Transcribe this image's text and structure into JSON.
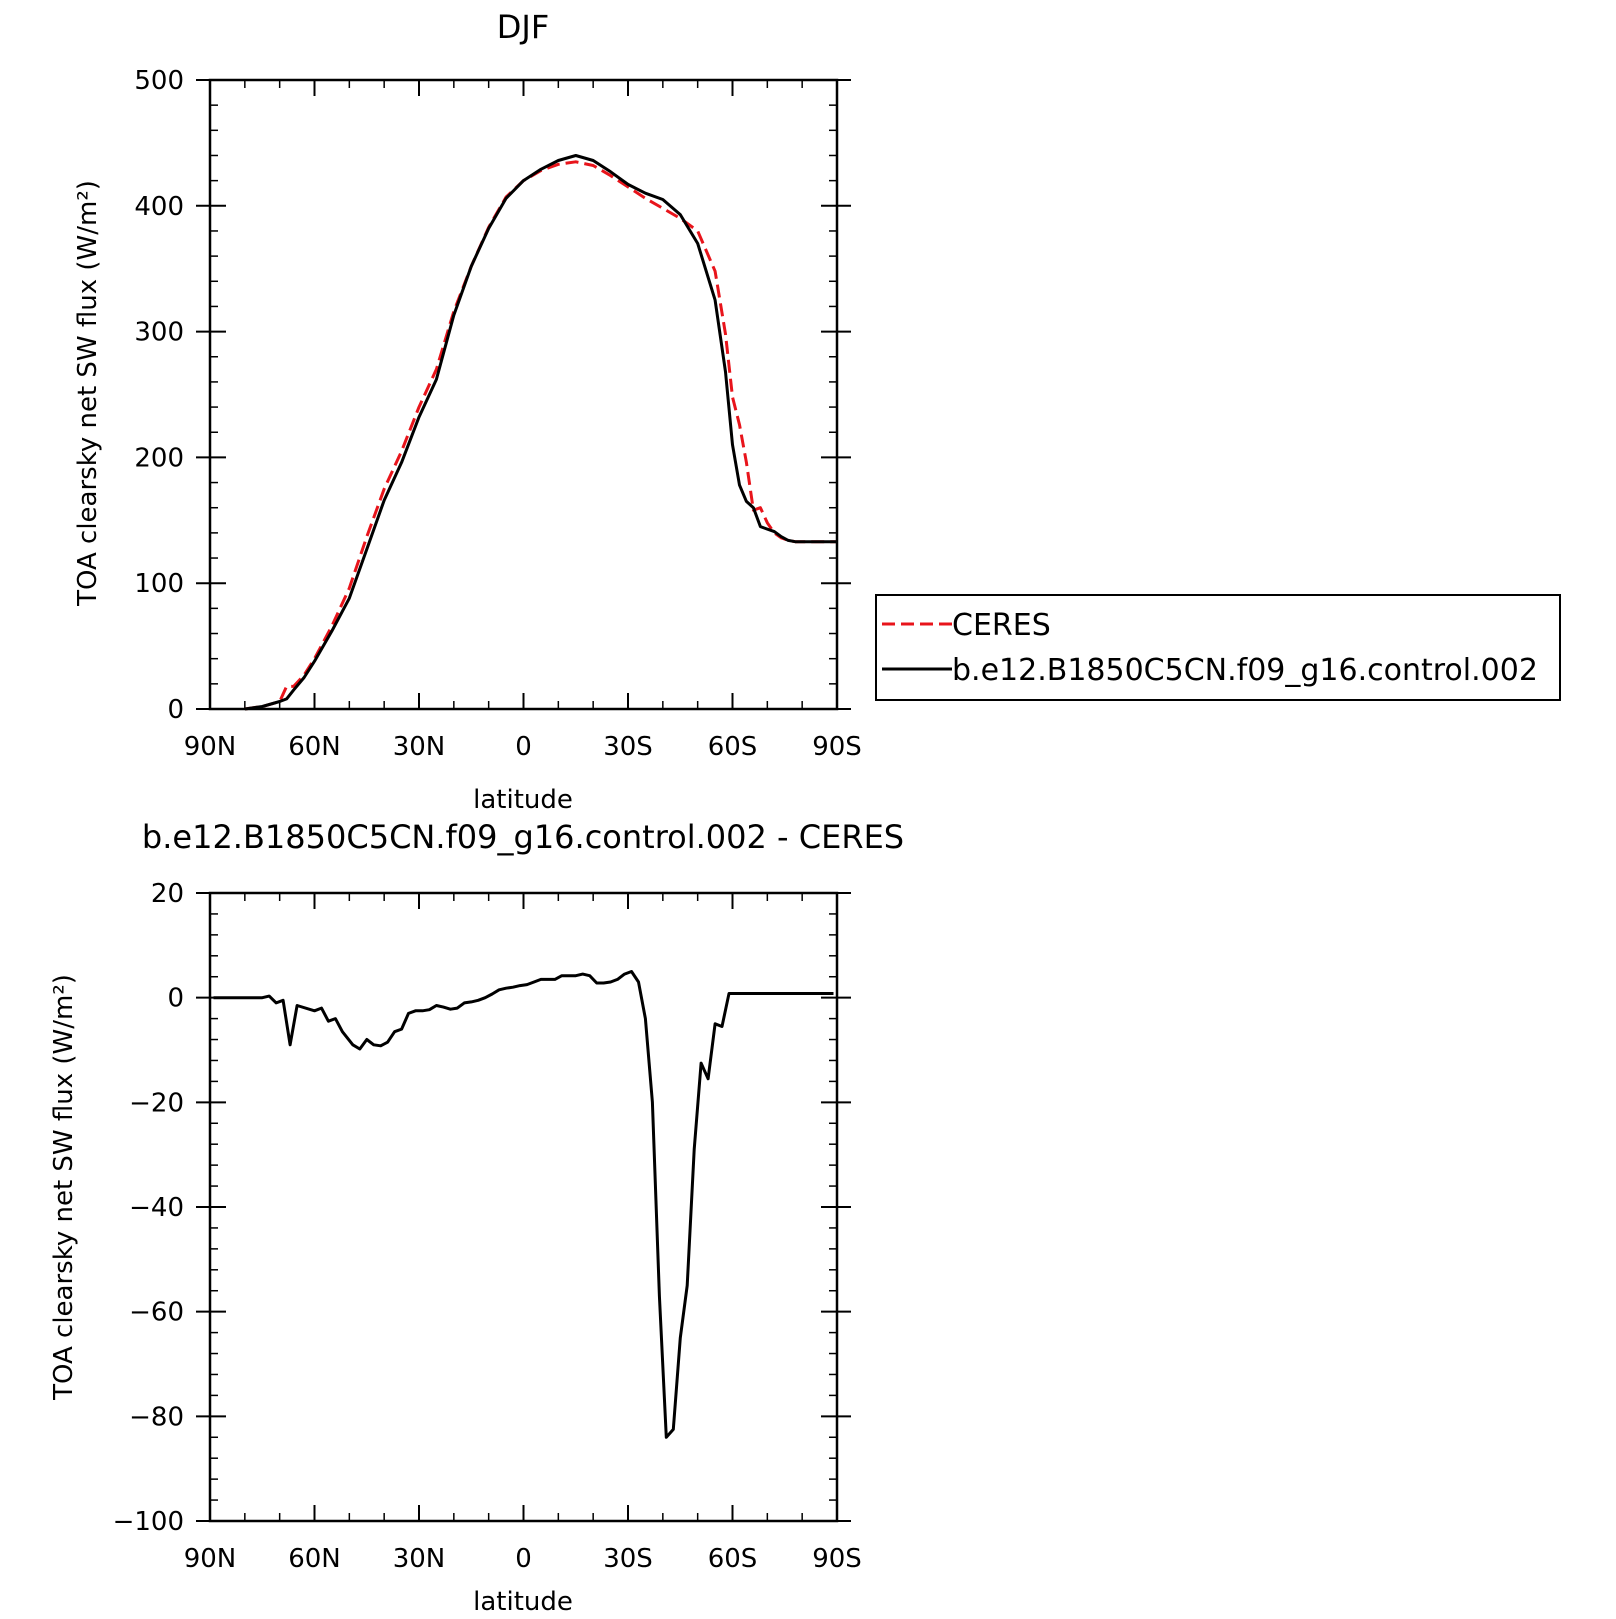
{
  "chart_data": [
    {
      "type": "line",
      "title": "DJF",
      "xlabel": "latitude",
      "ylabel": "TOA clearsky net SW flux (W/m²)",
      "xlim": [
        90,
        -90
      ],
      "ylim": [
        0,
        500
      ],
      "xticks": [
        90,
        60,
        30,
        0,
        -30,
        -60,
        -90
      ],
      "xtick_labels": [
        "90N",
        "60N",
        "30N",
        "0",
        "30S",
        "60S",
        "90S"
      ],
      "yticks": [
        0,
        100,
        200,
        300,
        400,
        500
      ],
      "ytick_labels": [
        "0",
        "100",
        "200",
        "300",
        "400",
        "500"
      ],
      "legend": {
        "placement": "right"
      },
      "series": [
        {
          "name": "CERES",
          "color": "#e8141b",
          "dash": "dashed",
          "x": [
            80,
            75,
            70,
            68,
            66,
            63,
            60,
            55,
            50,
            45,
            40,
            35,
            30,
            25,
            20,
            15,
            10,
            5,
            0,
            -5,
            -10,
            -15,
            -20,
            -25,
            -30,
            -35,
            -40,
            -45,
            -50,
            -55,
            -58,
            -60,
            -62,
            -64,
            -66,
            -68,
            -70,
            -72,
            -74,
            -76,
            -78,
            -80,
            -82,
            -84,
            -86,
            -88,
            -90
          ],
          "y": [
            0,
            2,
            6,
            18,
            18,
            27,
            40,
            66,
            96,
            137,
            175,
            205,
            240,
            270,
            316,
            352,
            383,
            407,
            420,
            428,
            433,
            435,
            432,
            424,
            415,
            406,
            398,
            390,
            380,
            348,
            298,
            248,
            226,
            196,
            158,
            160,
            148,
            140,
            136,
            134,
            133,
            133,
            133,
            133,
            133,
            133,
            133
          ]
        },
        {
          "name": "b.e12.B1850C5CN.f09_g16.control.002",
          "color": "#000000",
          "dash": "solid",
          "x": [
            80,
            75,
            70,
            68,
            66,
            63,
            60,
            55,
            50,
            45,
            40,
            35,
            30,
            25,
            20,
            15,
            10,
            5,
            0,
            -5,
            -10,
            -15,
            -20,
            -25,
            -30,
            -35,
            -40,
            -45,
            -50,
            -55,
            -58,
            -60,
            -62,
            -64,
            -66,
            -68,
            -70,
            -72,
            -74,
            -76,
            -78,
            -80,
            -82,
            -84,
            -86,
            -88,
            -90
          ],
          "y": [
            0,
            2,
            6,
            8,
            15,
            25,
            38,
            62,
            88,
            127,
            166,
            196,
            232,
            262,
            313,
            352,
            382,
            406,
            420,
            429,
            436,
            440,
            436,
            427,
            417,
            410,
            405,
            393,
            370,
            325,
            268,
            210,
            178,
            165,
            160,
            145,
            143,
            141,
            137,
            134,
            133,
            133,
            133,
            133,
            133,
            133,
            133
          ]
        }
      ]
    },
    {
      "type": "line",
      "title": "b.e12.B1850C5CN.f09_g16.control.002 - CERES",
      "xlabel": "latitude",
      "ylabel": "TOA clearsky net SW flux (W/m²)",
      "xlim": [
        90,
        -90
      ],
      "ylim": [
        -100,
        20
      ],
      "xticks": [
        90,
        60,
        30,
        0,
        -30,
        -60,
        -90
      ],
      "xtick_labels": [
        "90N",
        "60N",
        "30N",
        "0",
        "30S",
        "60S",
        "90S"
      ],
      "yticks": [
        -100,
        -80,
        -60,
        -40,
        -20,
        0,
        20
      ],
      "ytick_labels": [
        "−100",
        "−80",
        "−60",
        "−40",
        "−20",
        "0",
        "20"
      ],
      "series": [
        {
          "color": "#000000",
          "dash": "solid",
          "x": [
            89,
            80,
            75,
            73,
            71,
            69,
            67,
            65,
            60,
            58,
            56,
            54,
            52,
            49,
            47,
            45,
            43,
            41,
            39,
            37,
            35,
            33,
            31,
            29,
            27,
            25,
            23,
            21,
            19,
            17,
            15,
            13,
            11,
            9,
            7,
            5,
            3,
            1,
            -1,
            -3,
            -5,
            -7,
            -9,
            -11,
            -13,
            -15,
            -17,
            -19,
            -21,
            -23,
            -25,
            -27,
            -29,
            -31,
            -33,
            -35,
            -37,
            -39,
            -41,
            -43,
            -45,
            -47,
            -49,
            -51,
            -53,
            -55,
            -57,
            -59,
            -61,
            -63,
            -65,
            -67,
            -69,
            -71,
            -73,
            -75,
            -77,
            -79,
            -81,
            -83,
            -85,
            -87,
            -89
          ],
          "y": [
            0,
            0,
            0,
            0.3,
            -1.0,
            -0.5,
            -9.0,
            -1.5,
            -2.5,
            -2.0,
            -4.5,
            -4.0,
            -6.5,
            -9.0,
            -9.8,
            -8.0,
            -9.0,
            -9.2,
            -8.5,
            -6.5,
            -6.0,
            -3.0,
            -2.5,
            -2.5,
            -2.3,
            -1.5,
            -1.8,
            -2.2,
            -2.0,
            -1.0,
            -0.8,
            -0.5,
            0,
            0.7,
            1.5,
            1.8,
            2.0,
            2.3,
            2.5,
            3.0,
            3.5,
            3.5,
            3.5,
            4.2,
            4.2,
            4.2,
            4.5,
            4.2,
            2.8,
            2.8,
            3.0,
            3.5,
            4.5,
            5.0,
            3.0,
            -4.0,
            -20.0,
            -57.0,
            -84.0,
            -82.5,
            -65.0,
            -55.0,
            -29.0,
            -12.5,
            -15.5,
            -5.0,
            -5.5,
            0.8,
            0.8,
            0.8,
            0.8,
            0.8,
            0.8,
            0.8,
            0.8,
            0.8,
            0.8,
            0.8,
            0.8,
            0.8,
            0.8,
            0.8,
            0.8
          ]
        }
      ]
    }
  ]
}
